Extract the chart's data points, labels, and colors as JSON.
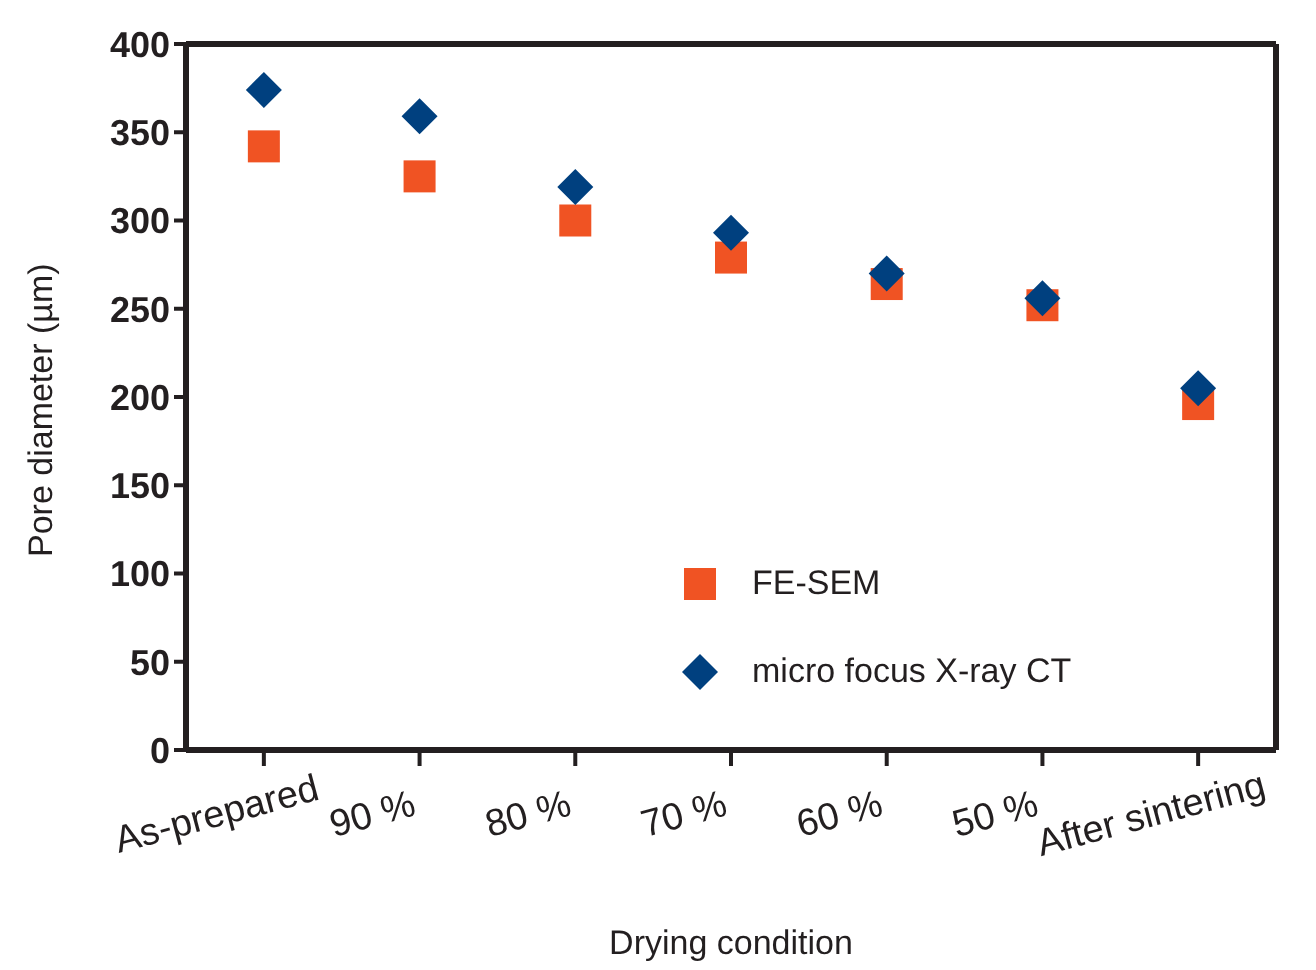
{
  "chart_data": {
    "type": "scatter",
    "xlabel": "Drying condition",
    "ylabel": "Pore diameter (µm)",
    "categories": [
      "As-prepared",
      "90 %",
      "80 %",
      "70 %",
      "60 %",
      "50 %",
      "After sintering"
    ],
    "series": [
      {
        "name": "FE-SEM",
        "color": "#f05323",
        "marker": "square",
        "values": [
          342,
          325,
          300,
          279,
          264,
          252,
          196
        ]
      },
      {
        "name": "micro focus X-ray CT",
        "color": "#00407f",
        "marker": "diamond",
        "values": [
          374,
          359,
          319,
          293,
          270,
          256,
          205
        ]
      }
    ],
    "ylim": [
      0,
      400
    ],
    "yticks": [
      0,
      50,
      100,
      150,
      200,
      250,
      300,
      350,
      400
    ],
    "legend": "bottom"
  }
}
